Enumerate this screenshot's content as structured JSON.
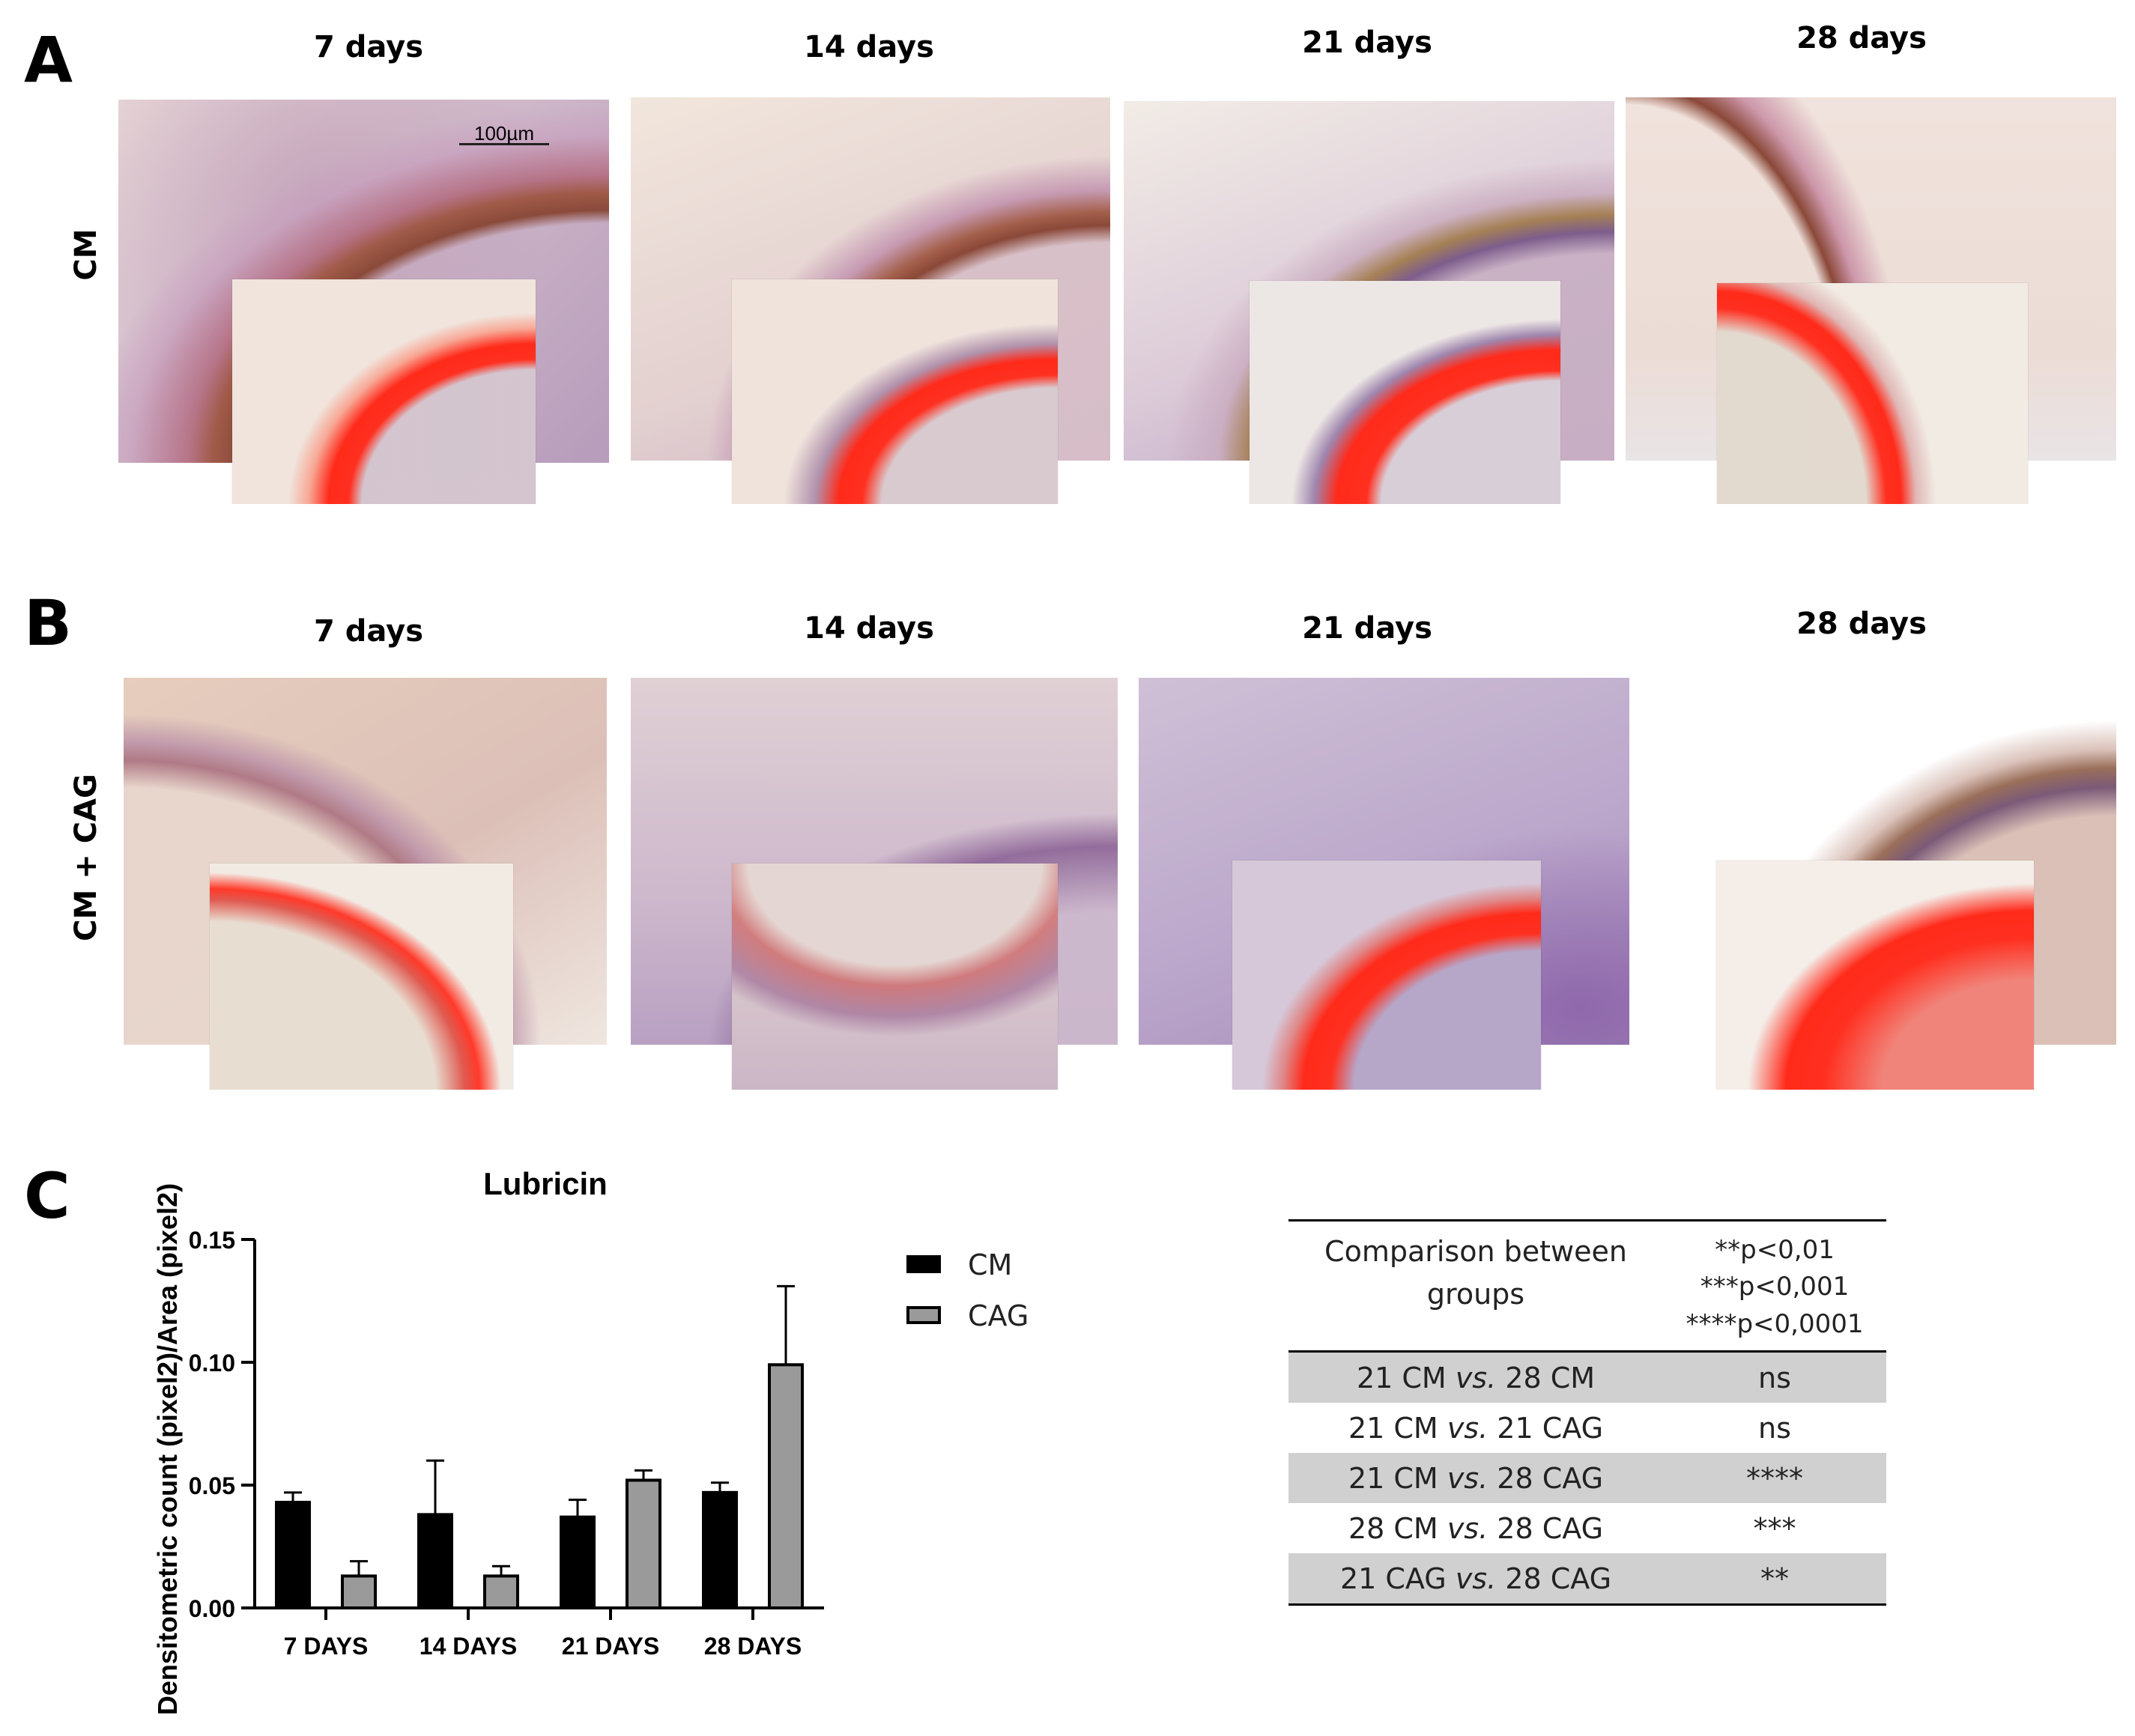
{
  "panel_a": {
    "letter": "A",
    "row_label": "CM",
    "columns": [
      "7 days",
      "14 days",
      "21 days",
      "28 days"
    ],
    "scale_bar": "100µm"
  },
  "panel_b": {
    "letter": "B",
    "row_label": "CM + CAG",
    "columns": [
      "7 days",
      "14 days",
      "21 days",
      "28 days"
    ]
  },
  "panel_c": {
    "letter": "C",
    "legend": [
      "CM",
      "CAG"
    ],
    "table": {
      "header": {
        "comparison": "Comparison between groups",
        "significance": [
          "**p<0,01",
          "***p<0,001",
          "****p<0,0001"
        ]
      },
      "rows": [
        {
          "group_a": "21 CM",
          "vs": "vs.",
          "group_b": "28 CM",
          "result": "ns"
        },
        {
          "group_a": "21 CM",
          "vs": "vs.",
          "group_b": "21 CAG",
          "result": "ns"
        },
        {
          "group_a": "21 CM",
          "vs": "vs.",
          "group_b": "28 CAG",
          "result": "****"
        },
        {
          "group_a": "28 CM",
          "vs": "vs.",
          "group_b": "28 CAG",
          "result": "***"
        },
        {
          "group_a": "21 CAG",
          "vs": "vs.",
          "group_b": "28 CAG",
          "result": "**"
        }
      ]
    }
  },
  "colors": {
    "cm_bar": "#000000",
    "cag_bar": "#9a9a9a",
    "table_shade": "#d0d0d0",
    "stain_red": "#ff2a1a",
    "tissue_purple": "#9c7fa8",
    "tissue_brown": "#a86a3c"
  },
  "chart_data": {
    "type": "bar",
    "title": "Lubricin",
    "xlabel": "",
    "ylabel": "Densitometric count (pixel2)/Area (pixel2)",
    "categories": [
      "7 DAYS",
      "14 DAYS",
      "21 DAYS",
      "28 DAYS"
    ],
    "series": [
      {
        "name": "CM",
        "values": [
          0.043,
          0.038,
          0.037,
          0.047
        ],
        "errors": [
          0.004,
          0.022,
          0.007,
          0.004
        ]
      },
      {
        "name": "CAG",
        "values": [
          0.013,
          0.013,
          0.052,
          0.099
        ],
        "errors": [
          0.006,
          0.004,
          0.004,
          0.032
        ]
      }
    ],
    "ylim": [
      0,
      0.15
    ],
    "yticks": [
      "0.00",
      "0.05",
      "0.10",
      "0.15"
    ],
    "grid": false,
    "error_bars": "upper"
  }
}
